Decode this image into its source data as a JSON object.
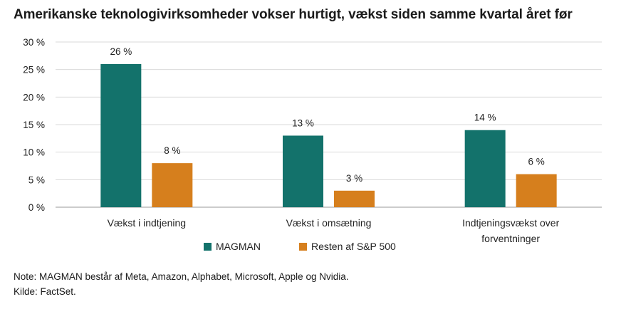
{
  "title": "Amerikanske teknologivirksomheder vokser hurtigt, vækst siden samme kvartal året før",
  "notes": {
    "note": "Note: MAGMAN består af Meta, Amazon, Alphabet, Microsoft, Apple og Nvidia.",
    "source": "Kilde: FactSet."
  },
  "chart_data": {
    "type": "bar",
    "categories": [
      [
        "Vækst i indtjening"
      ],
      [
        "Vækst i omsætning"
      ],
      [
        "Indtjeningsvækst over",
        "forventninger"
      ]
    ],
    "series": [
      {
        "name": "MAGMAN",
        "values": [
          26,
          13,
          14
        ],
        "labels": [
          "26 %",
          "13 %",
          "14 %"
        ],
        "color": "#13726b"
      },
      {
        "name": "Resten af S&P 500",
        "values": [
          8,
          3,
          6
        ],
        "labels": [
          "8 %",
          "3 %",
          "6 %"
        ],
        "color": "#d67f1d"
      }
    ],
    "yticks": [
      "0 %",
      "5 %",
      "10 %",
      "15 %",
      "20 %",
      "25 %",
      "30 %"
    ],
    "ytick_values": [
      0,
      5,
      10,
      15,
      20,
      25,
      30
    ],
    "ylim": [
      0,
      30
    ],
    "grid": true,
    "legend": "bottom-center",
    "xlabel": "",
    "ylabel": ""
  }
}
